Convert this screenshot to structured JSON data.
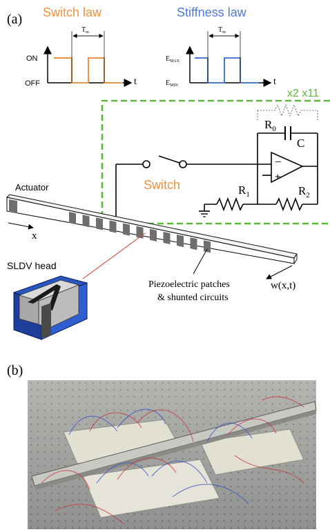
{
  "panel_a": {
    "label": "(a)",
    "switch_law": {
      "title": "Switch law",
      "period": "T",
      "period_sub": "m",
      "on": "ON",
      "off": "OFF",
      "time": "t"
    },
    "stiffness_law": {
      "title": "Stiffness law",
      "period": "T",
      "period_sub": "m",
      "emax": "E",
      "emax_sub": "MAX",
      "emin": "E",
      "emin_sub": "MIN",
      "time": "t"
    },
    "multiplier": "x2 x11",
    "circuit": {
      "r0": "R",
      "r0_sub": "0",
      "c": "C",
      "r1": "R",
      "r1_sub": "1",
      "r2": "R",
      "r2_sub": "2",
      "minus": "−",
      "plus": "+",
      "switch": "Switch"
    },
    "beam": {
      "actuator": "Actuator",
      "x": "x",
      "sldv": "SLDV head",
      "patches_line1": "Piezoelectric patches",
      "patches_line2": "& shunted circuits",
      "deflection": "w(x,t)"
    },
    "colors": {
      "orange": "#f0923f",
      "blue": "#4f79d6",
      "green": "#5cb83a",
      "laser": "#d23a2e",
      "sldv_blue": "#1f4cb3"
    }
  },
  "panel_b": {
    "label": "(b)"
  }
}
